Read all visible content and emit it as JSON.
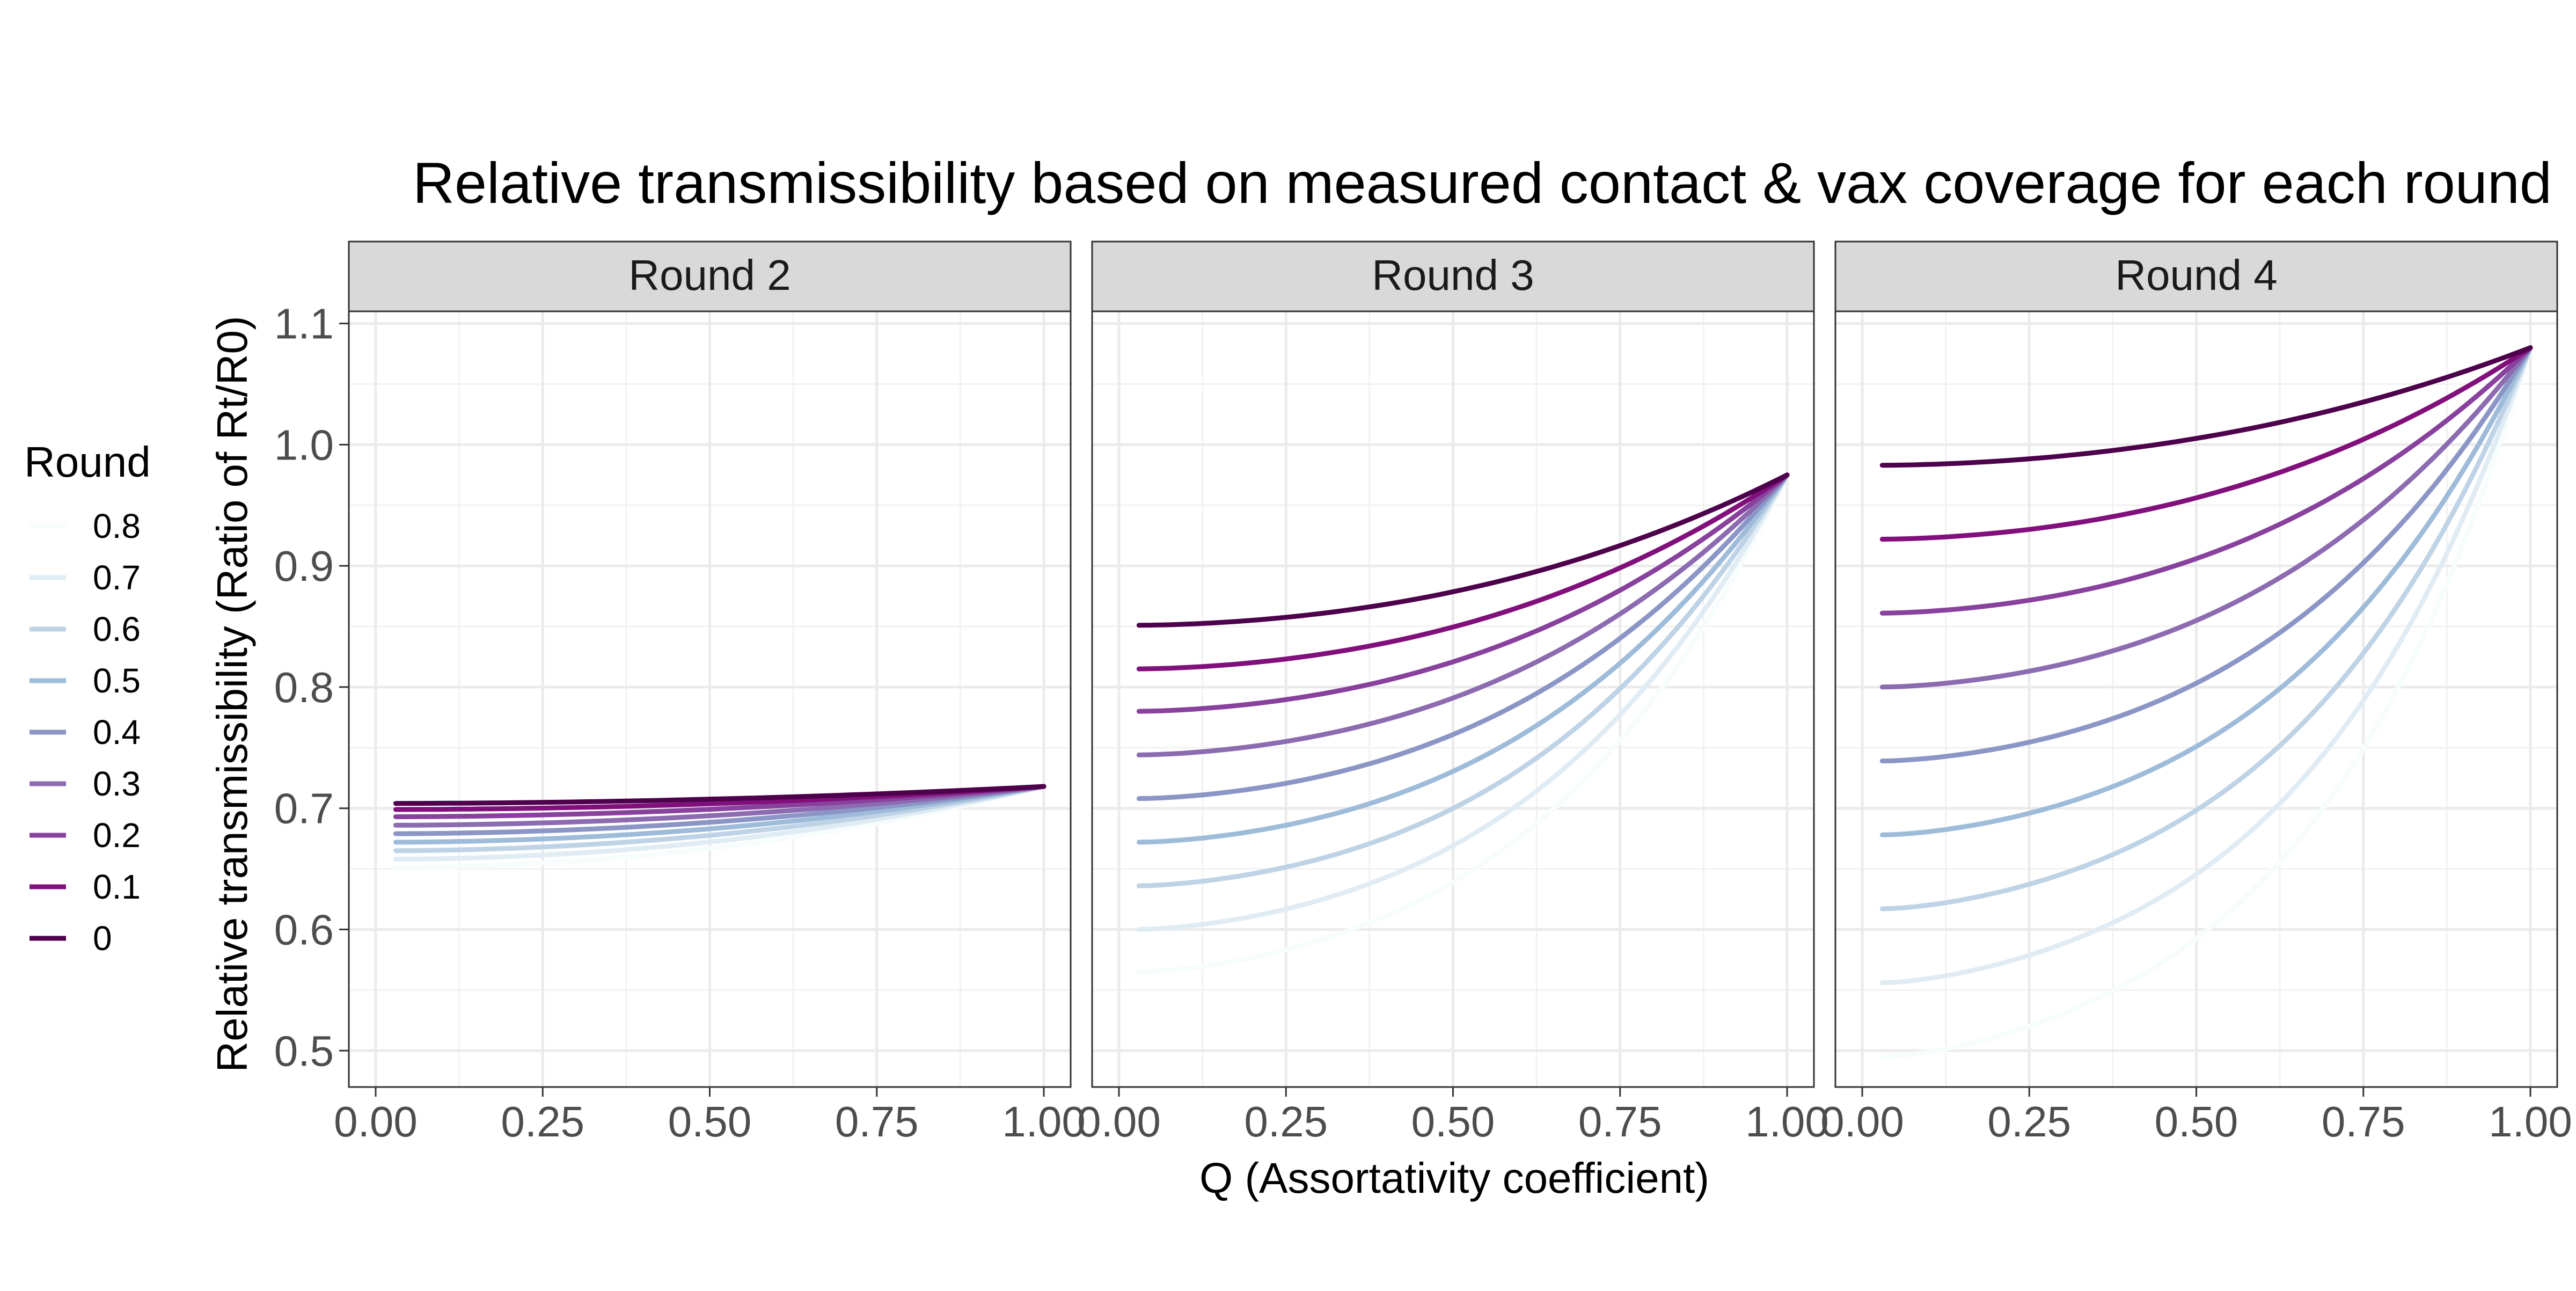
{
  "chart_data": {
    "type": "line",
    "title": "Relative transmissibility based on measured contact & vax coverage for each round",
    "xlabel": "Q (Assortativity coefficient)",
    "ylabel": "Relative transmissibility (Ratio of Rt/R0)",
    "xlim": [
      0,
      1
    ],
    "ylim": [
      0.47,
      1.11
    ],
    "x_ticks": [
      "0.00",
      "0.25",
      "0.50",
      "0.75",
      "1.00"
    ],
    "y_ticks": [
      "0.5",
      "0.6",
      "0.7",
      "0.8",
      "0.9",
      "1.0",
      "1.1"
    ],
    "grid": true,
    "legend": {
      "title": "Round",
      "position": "left",
      "entries": [
        "0.8",
        "0.7",
        "0.6",
        "0.5",
        "0.4",
        "0.3",
        "0.2",
        "0.1",
        "0"
      ],
      "colors": [
        "#f7fcfd",
        "#e0ecf4",
        "#bfd3e6",
        "#9ebcda",
        "#8c96c6",
        "#8c6bb1",
        "#88419d",
        "#810f7c",
        "#4d004b"
      ]
    },
    "x": [
      0.03,
      0.1,
      0.2,
      0.3,
      0.4,
      0.5,
      0.6,
      0.7,
      0.8,
      0.9,
      1.0
    ],
    "panels": [
      {
        "label": "Round 2",
        "endpoint": 0.718,
        "start_values": {
          "0.8": 0.651,
          "0.7": 0.658,
          "0.6": 0.665,
          "0.5": 0.672,
          "0.4": 0.679,
          "0.3": 0.686,
          "0.2": 0.693,
          "0.1": 0.699,
          "0": 0.704
        }
      },
      {
        "label": "Round 3",
        "endpoint": 0.975,
        "start_values": {
          "0.8": 0.565,
          "0.7": 0.6,
          "0.6": 0.636,
          "0.5": 0.672,
          "0.4": 0.708,
          "0.3": 0.744,
          "0.2": 0.78,
          "0.1": 0.815,
          "0": 0.851
        }
      },
      {
        "label": "Round 4",
        "endpoint": 1.08,
        "start_values": {
          "0.8": 0.495,
          "0.7": 0.556,
          "0.6": 0.617,
          "0.5": 0.678,
          "0.4": 0.739,
          "0.3": 0.8,
          "0.2": 0.861,
          "0.1": 0.922,
          "0": 0.983
        }
      }
    ]
  }
}
